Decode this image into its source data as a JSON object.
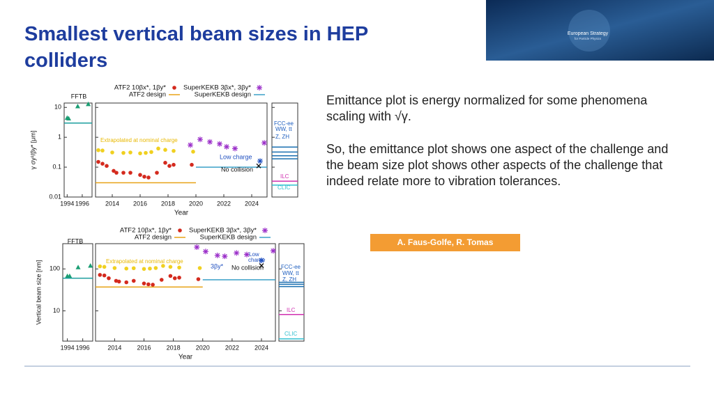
{
  "header": {
    "title": "Smallest vertical beam sizes in HEP colliders"
  },
  "logo": {
    "line1": "European Strategy",
    "line2": "for Particle Physics"
  },
  "text": {
    "paragraphs": [
      "Emittance plot is energy normalized for some phenomena scaling with √γ.",
      "So, the emittance plot shows one aspect of the challenge and the beam size plot shows other aspects of the challenge that indeed relate more to vibration tolerances."
    ]
  },
  "credit": "A. Faus-Golfe, R. Tomas",
  "chart_data": [
    {
      "type": "scatter",
      "log_y": true,
      "ylabel": "γ σy²/βy* [μm]",
      "xlabel": "Year",
      "ylim": [
        0.01,
        14
      ],
      "yticks": [
        0.01,
        0.1,
        1,
        10
      ],
      "panels": [
        {
          "xlim": [
            1993.6,
            1997.3
          ],
          "xticks": [
            1994,
            1996
          ],
          "labels": [
            "FFTB"
          ],
          "series": [
            {
              "marker": "triangle",
              "color": "#1a9e73",
              "x": [
                1994,
                1994.2,
                1995.4,
                1996.8
              ],
              "values": [
                4.5,
                4.3,
                11,
                13
              ]
            },
            {
              "marker": "line",
              "color": "#1a9e9e",
              "x": [
                1993.6,
                1997.3
              ],
              "values": [
                3,
                3
              ]
            }
          ]
        },
        {
          "xlim": [
            2012.8,
            2025.1
          ],
          "xticks": [
            2014,
            2016,
            2018,
            2020,
            2022,
            2024
          ],
          "labels": [
            "Extrapolated at nominal charge",
            "Low charge",
            "No collision"
          ],
          "series": [
            {
              "marker": "dot",
              "color": "#f0d020",
              "x": [
                2013,
                2013.3,
                2014,
                2014.8,
                2015.3,
                2016,
                2016.4,
                2016.8,
                2017.3,
                2017.8,
                2018.4,
                2019.8
              ],
              "values": [
                0.37,
                0.36,
                0.31,
                0.3,
                0.31,
                0.29,
                0.3,
                0.32,
                0.42,
                0.38,
                0.35,
                0.33
              ]
            },
            {
              "name": "ATF2 10βx*, 1βy*",
              "marker": "dot",
              "color": "#d42a1e",
              "x": [
                2013,
                2013.3,
                2013.6,
                2014.1,
                2014.3,
                2014.8,
                2015.3,
                2016,
                2016.3,
                2016.6,
                2017.2,
                2017.8,
                2018.1,
                2018.4,
                2019.7
              ],
              "values": [
                0.15,
                0.13,
                0.11,
                0.075,
                0.065,
                0.065,
                0.065,
                0.055,
                0.048,
                0.045,
                0.065,
                0.14,
                0.11,
                0.12,
                0.12
              ]
            },
            {
              "name": "ATF2 design",
              "marker": "line",
              "color": "#e8a317",
              "x": [
                2012.8,
                2020
              ],
              "values": [
                0.03,
                0.03
              ]
            },
            {
              "name": "SuperKEKB 3βx*, 3βy*",
              "marker": "star",
              "color": "#9b2fc9",
              "x": [
                2019.6,
                2020.3,
                2021,
                2021.7,
                2022.2,
                2022.8,
                2024.9
              ],
              "values": [
                0.55,
                0.85,
                0.7,
                0.6,
                0.48,
                0.42,
                0.65
              ]
            },
            {
              "name": "SuperKEKB design",
              "marker": "line",
              "color": "#3aa0c8",
              "x": [
                2020,
                2025.1
              ],
              "values": [
                0.1,
                0.1
              ]
            },
            {
              "marker": "star",
              "color": "#2050c0",
              "x": [
                2024.6
              ],
              "values": [
                0.16
              ]
            },
            {
              "marker": "cross",
              "color": "#111111",
              "x": [
                2024.5
              ],
              "values": [
                0.11
              ]
            }
          ]
        },
        {
          "labels": [
            "FCC-ee",
            "WW, tt",
            "Z, ZH",
            "ILC",
            "CLIC"
          ],
          "series": [
            {
              "marker": "hline",
              "color": "#1a6fb0",
              "values": [
                0.47
              ]
            },
            {
              "marker": "hline",
              "color": "#1a6fb0",
              "values": [
                0.32
              ]
            },
            {
              "marker": "hline",
              "color": "#1a6fb0",
              "values": [
                0.24
              ]
            },
            {
              "marker": "hline",
              "color": "#1a6fb0",
              "values": [
                0.19
              ]
            },
            {
              "marker": "hline",
              "color": "#d030b0",
              "values": [
                0.034
              ]
            },
            {
              "marker": "hline",
              "color": "#30c0d0",
              "values": [
                0.025
              ]
            }
          ]
        }
      ]
    },
    {
      "type": "scatter",
      "log_y": true,
      "ylabel": "Vertical beam size [nm]",
      "xlabel": "Year",
      "ylim": [
        1.9,
        400
      ],
      "yticks": [
        10,
        100
      ],
      "panels": [
        {
          "xlim": [
            1993.4,
            1997.3
          ],
          "xticks": [
            1994,
            1996
          ],
          "labels": [
            "FFTB"
          ],
          "series": [
            {
              "marker": "triangle",
              "color": "#1a9e73",
              "x": [
                1994,
                1994.3,
                1995.4,
                1997
              ],
              "values": [
                68,
                68,
                110,
                120
              ]
            },
            {
              "marker": "line",
              "color": "#1a9e9e",
              "x": [
                1993.4,
                1997.3
              ],
              "values": [
                60,
                60
              ]
            }
          ]
        },
        {
          "xlim": [
            2012.7,
            2024.95
          ],
          "xticks": [
            2014,
            2016,
            2018,
            2020,
            2022,
            2024
          ],
          "labels": [
            "Extrapolated at nominal charge",
            "3βy*",
            "No collision",
            "Low",
            "charge"
          ],
          "series": [
            {
              "marker": "dot",
              "color": "#f0d020",
              "x": [
                2013,
                2013.3,
                2014,
                2014.8,
                2015.3,
                2016,
                2016.4,
                2016.8,
                2017.3,
                2017.8,
                2018.4,
                2019.8
              ],
              "values": [
                115,
                112,
                105,
                102,
                104,
                100,
                102,
                105,
                118,
                112,
                108,
                105
              ]
            },
            {
              "name": "ATF2 10βx*, 1βy*",
              "marker": "dot",
              "color": "#d42a1e",
              "x": [
                2013,
                2013.3,
                2013.6,
                2014.1,
                2014.3,
                2014.8,
                2015.3,
                2016,
                2016.3,
                2016.6,
                2017.2,
                2017.8,
                2018.1,
                2018.4,
                2019.7
              ],
              "values": [
                72,
                70,
                60,
                52,
                50,
                48,
                52,
                45,
                43,
                42,
                55,
                68,
                60,
                62,
                57
              ]
            },
            {
              "name": "ATF2 design",
              "marker": "line",
              "color": "#e8a317",
              "x": [
                2012.7,
                2020
              ],
              "values": [
                37,
                37
              ]
            },
            {
              "name": "SuperKEKB 3βx*, 3βy*",
              "marker": "star",
              "color": "#9b2fc9",
              "x": [
                2019.6,
                2020.2,
                2021,
                2021.5,
                2022.3,
                2023,
                2024.8
              ],
              "values": [
                330,
                260,
                210,
                200,
                240,
                220,
                270
              ]
            },
            {
              "name": "SuperKEKB design",
              "marker": "line",
              "color": "#3aa0c8",
              "x": [
                2020,
                2024.95
              ],
              "values": [
                55,
                55
              ]
            },
            {
              "marker": "star",
              "color": "#2050c0",
              "x": [
                2024
              ],
              "values": [
                160
              ]
            },
            {
              "marker": "cross",
              "color": "#111111",
              "x": [
                2024
              ],
              "values": [
                120
              ]
            }
          ]
        },
        {
          "labels": [
            "FCC-ee",
            "WW, tt",
            "Z, ZH",
            "ILC",
            "CLIC"
          ],
          "series": [
            {
              "marker": "hline",
              "color": "#1a6fb0",
              "values": [
                48
              ]
            },
            {
              "marker": "hline",
              "color": "#1a6fb0",
              "values": [
                43
              ]
            },
            {
              "marker": "hline",
              "color": "#1a6fb0",
              "values": [
                38
              ]
            },
            {
              "marker": "hline",
              "color": "#d030b0",
              "values": [
                8.2
              ]
            },
            {
              "marker": "hline",
              "color": "#30c0d0",
              "values": [
                2.15
              ]
            }
          ]
        }
      ]
    }
  ]
}
